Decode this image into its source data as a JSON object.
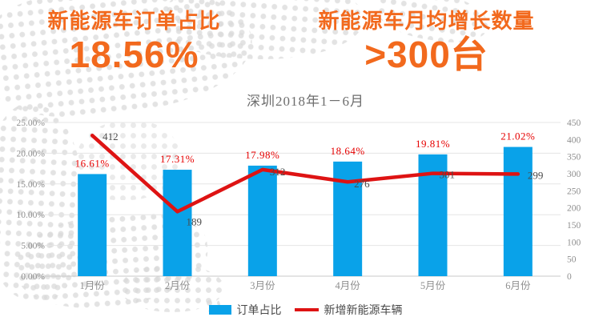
{
  "header": {
    "left": {
      "title": "新能源车订单占比",
      "value": "18.56%"
    },
    "right": {
      "title": "新能源车月均增长数量",
      "value": ">300台"
    }
  },
  "chart_data": {
    "type": "bar",
    "subtype": "bar + line combo, dual axis",
    "title": "深圳2018年1－6月",
    "categories": [
      "1月份",
      "2月份",
      "3月份",
      "4月份",
      "5月份",
      "6月份"
    ],
    "series": [
      {
        "name": "订单占比",
        "type": "bar",
        "axis": "left",
        "unit": "%",
        "color": "#09a2e9",
        "values": [
          16.61,
          17.31,
          17.98,
          18.64,
          19.81,
          21.02
        ],
        "labels": [
          "16.61%",
          "17.31%",
          "17.98%",
          "18.64%",
          "19.81%",
          "21.02%"
        ]
      },
      {
        "name": "新增新能源车辆",
        "type": "line",
        "axis": "right",
        "color": "#de1313",
        "values": [
          412,
          189,
          312,
          276,
          301,
          299
        ],
        "labels": [
          "412",
          "189",
          "312",
          "276",
          "301",
          "299"
        ]
      }
    ],
    "left_axis": {
      "min": 0,
      "max": 25,
      "ticks": [
        "0.00%",
        "5.00%",
        "10.00%",
        "15.00%",
        "20.00%",
        "25.00%"
      ]
    },
    "right_axis": {
      "min": 0,
      "max": 450,
      "ticks": [
        "0",
        "50",
        "100",
        "150",
        "200",
        "250",
        "300",
        "350",
        "400",
        "450"
      ]
    },
    "grid": true,
    "legend_position": "bottom",
    "legend": [
      {
        "label": "订单占比",
        "marker": "square",
        "color": "#09a2e9"
      },
      {
        "label": "新增新能源车辆",
        "marker": "line",
        "color": "#de1313"
      }
    ]
  },
  "colors": {
    "accent_orange": "#f2691d",
    "bar_blue": "#09a2e9",
    "line_red": "#de1313",
    "percent_label_red": "#e60000",
    "line_label_gray": "#4a4a4a",
    "axis_gray": "#8f8f8f",
    "title_gray": "#6e6e6e",
    "grid_gray": "#e5e5e5"
  }
}
